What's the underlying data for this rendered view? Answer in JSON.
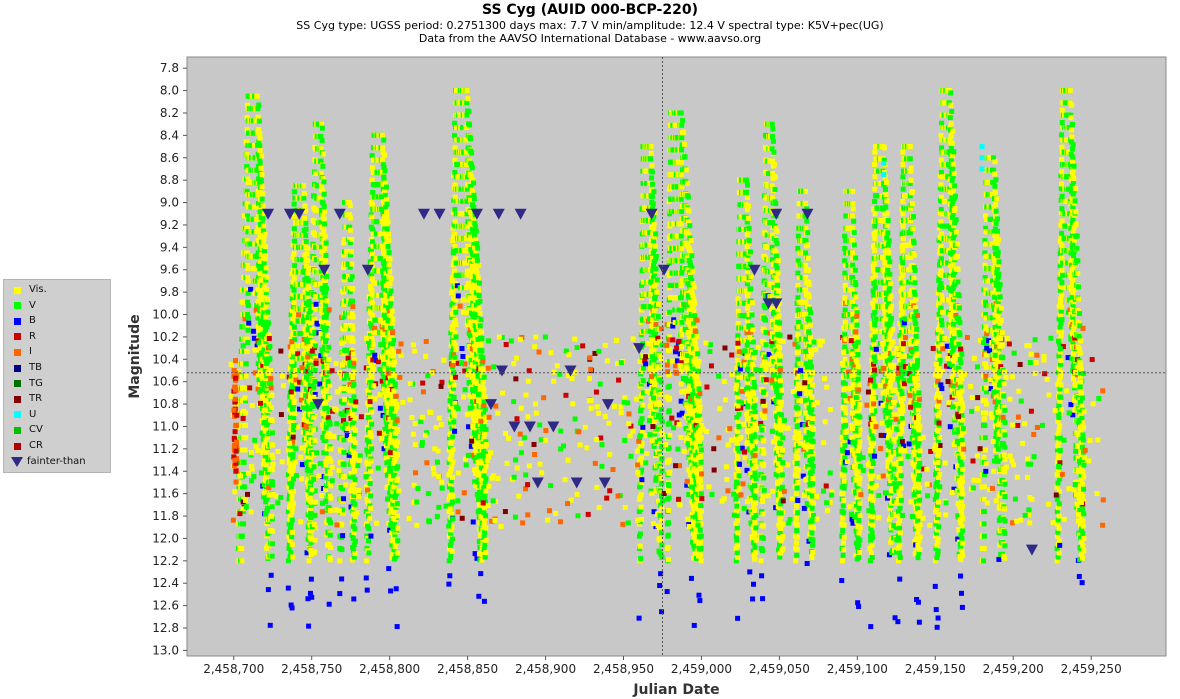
{
  "header": {
    "title": "SS Cyg    (AUID 000-BCP-220)",
    "subtitle": "SS Cyg   type: UGSS   period: 0.2751300 days   max: 7.7 V   min/amplitude: 12.4 V   spectral type: K5V+pec(UG)",
    "source": "Data from the AAVSO International Database - www.aavso.org"
  },
  "chart_data": {
    "type": "scatter",
    "xlabel": "Julian Date",
    "ylabel": "Magnitude",
    "xlim": [
      2458670,
      2459298
    ],
    "ylim": [
      7.7,
      13.05
    ],
    "y_inverted": true,
    "x_ticks": [
      2458700,
      2458750,
      2458800,
      2458850,
      2458900,
      2458950,
      2459000,
      2459050,
      2459100,
      2459150,
      2459200,
      2459250
    ],
    "x_tick_labels": [
      "2,458,700",
      "2,458,750",
      "2,458,800",
      "2,458,850",
      "2,458,900",
      "2,458,950",
      "2,459,000",
      "2,459,050",
      "2,459,100",
      "2,459,150",
      "2,459,200",
      "2,459,250"
    ],
    "y_ticks": [
      7.8,
      8.0,
      8.2,
      8.4,
      8.6,
      8.8,
      9.0,
      9.2,
      9.4,
      9.6,
      9.8,
      10.0,
      10.2,
      10.4,
      10.6,
      10.8,
      11.0,
      11.2,
      11.4,
      11.6,
      11.8,
      12.0,
      12.2,
      12.4,
      12.6,
      12.8,
      13.0
    ],
    "y_tick_labels": [
      "7.8",
      "8.0",
      "8.2",
      "8.4",
      "8.6",
      "8.8",
      "9.0",
      "9.2",
      "9.4",
      "9.6",
      "9.8",
      "10.0",
      "10.2",
      "10.4",
      "10.6",
      "10.8",
      "11.0",
      "11.2",
      "11.4",
      "11.6",
      "11.8",
      "12.0",
      "12.2",
      "12.4",
      "12.6",
      "12.8",
      "13.0"
    ],
    "crosshair": {
      "x": 2458975,
      "y": 10.52
    },
    "background": "#c8c8c8",
    "legend": [
      {
        "name": "Vis.",
        "color": "#ffff00",
        "marker": "square"
      },
      {
        "name": "V",
        "color": "#00ff00",
        "marker": "square"
      },
      {
        "name": "B",
        "color": "#0000ff",
        "marker": "square"
      },
      {
        "name": "R",
        "color": "#cc0000",
        "marker": "square"
      },
      {
        "name": "I",
        "color": "#ff6600",
        "marker": "square"
      },
      {
        "name": "TB",
        "color": "#000080",
        "marker": "square"
      },
      {
        "name": "TG",
        "color": "#007000",
        "marker": "square"
      },
      {
        "name": "TR",
        "color": "#800000",
        "marker": "square"
      },
      {
        "name": "U",
        "color": "#00ffff",
        "marker": "square"
      },
      {
        "name": "CV",
        "color": "#00c000",
        "marker": "square"
      },
      {
        "name": "CR",
        "color": "#b00000",
        "marker": "square"
      },
      {
        "name": "fainter-than",
        "color": "#2e2a85",
        "marker": "triangle-down"
      }
    ],
    "outbursts": [
      {
        "start": 2458703,
        "peak": 8.05,
        "peak_at": 2458710,
        "end": 2458725
      },
      {
        "start": 2458735,
        "peak": 8.85,
        "peak_at": 2458740,
        "end": 2458752
      },
      {
        "start": 2458748,
        "peak": 8.3,
        "peak_at": 2458753,
        "end": 2458762
      },
      {
        "start": 2458768,
        "peak": 9.0,
        "peak_at": 2458772,
        "end": 2458778
      },
      {
        "start": 2458785,
        "peak": 8.4,
        "peak_at": 2458790,
        "end": 2458805
      },
      {
        "start": 2458838,
        "peak": 8.0,
        "peak_at": 2458843,
        "end": 2458862
      },
      {
        "start": 2458960,
        "peak": 8.5,
        "peak_at": 2458963,
        "end": 2458975
      },
      {
        "start": 2458978,
        "peak": 8.2,
        "peak_at": 2458980,
        "end": 2459000
      },
      {
        "start": 2459022,
        "peak": 8.8,
        "peak_at": 2459025,
        "end": 2459035
      },
      {
        "start": 2459038,
        "peak": 8.3,
        "peak_at": 2459042,
        "end": 2459052
      },
      {
        "start": 2459060,
        "peak": 8.9,
        "peak_at": 2459063,
        "end": 2459072
      },
      {
        "start": 2459090,
        "peak": 8.9,
        "peak_at": 2459093,
        "end": 2459102
      },
      {
        "start": 2459108,
        "peak": 8.5,
        "peak_at": 2459112,
        "end": 2459125
      },
      {
        "start": 2459126,
        "peak": 8.5,
        "peak_at": 2459130,
        "end": 2459140
      },
      {
        "start": 2459150,
        "peak": 8.0,
        "peak_at": 2459155,
        "end": 2459168
      },
      {
        "start": 2459180,
        "peak": 8.6,
        "peak_at": 2459183,
        "end": 2459195
      },
      {
        "start": 2459228,
        "peak": 8.0,
        "peak_at": 2459232,
        "end": 2459245
      }
    ],
    "fainter_than": [
      {
        "x": 2458722,
        "y": 9.1
      },
      {
        "x": 2458736,
        "y": 9.1
      },
      {
        "x": 2458742,
        "y": 9.1
      },
      {
        "x": 2458768,
        "y": 9.1
      },
      {
        "x": 2458822,
        "y": 9.1
      },
      {
        "x": 2458832,
        "y": 9.1
      },
      {
        "x": 2458856,
        "y": 9.1
      },
      {
        "x": 2458870,
        "y": 9.1
      },
      {
        "x": 2458884,
        "y": 9.1
      },
      {
        "x": 2458968,
        "y": 9.1
      },
      {
        "x": 2459048,
        "y": 9.1
      },
      {
        "x": 2459068,
        "y": 9.1
      },
      {
        "x": 2458758,
        "y": 9.6
      },
      {
        "x": 2458786,
        "y": 9.6
      },
      {
        "x": 2458976,
        "y": 9.6
      },
      {
        "x": 2459034,
        "y": 9.6
      },
      {
        "x": 2459043,
        "y": 9.9
      },
      {
        "x": 2459048,
        "y": 9.9
      },
      {
        "x": 2458960,
        "y": 10.3
      },
      {
        "x": 2458872,
        "y": 10.5
      },
      {
        "x": 2458916,
        "y": 10.5
      },
      {
        "x": 2458754,
        "y": 10.8
      },
      {
        "x": 2458865,
        "y": 10.8
      },
      {
        "x": 2458940,
        "y": 10.8
      },
      {
        "x": 2458880,
        "y": 11.0
      },
      {
        "x": 2458890,
        "y": 11.0
      },
      {
        "x": 2458905,
        "y": 11.0
      },
      {
        "x": 2458895,
        "y": 11.5
      },
      {
        "x": 2458920,
        "y": 11.5
      },
      {
        "x": 2458938,
        "y": 11.5
      },
      {
        "x": 2459212,
        "y": 12.1
      }
    ]
  }
}
